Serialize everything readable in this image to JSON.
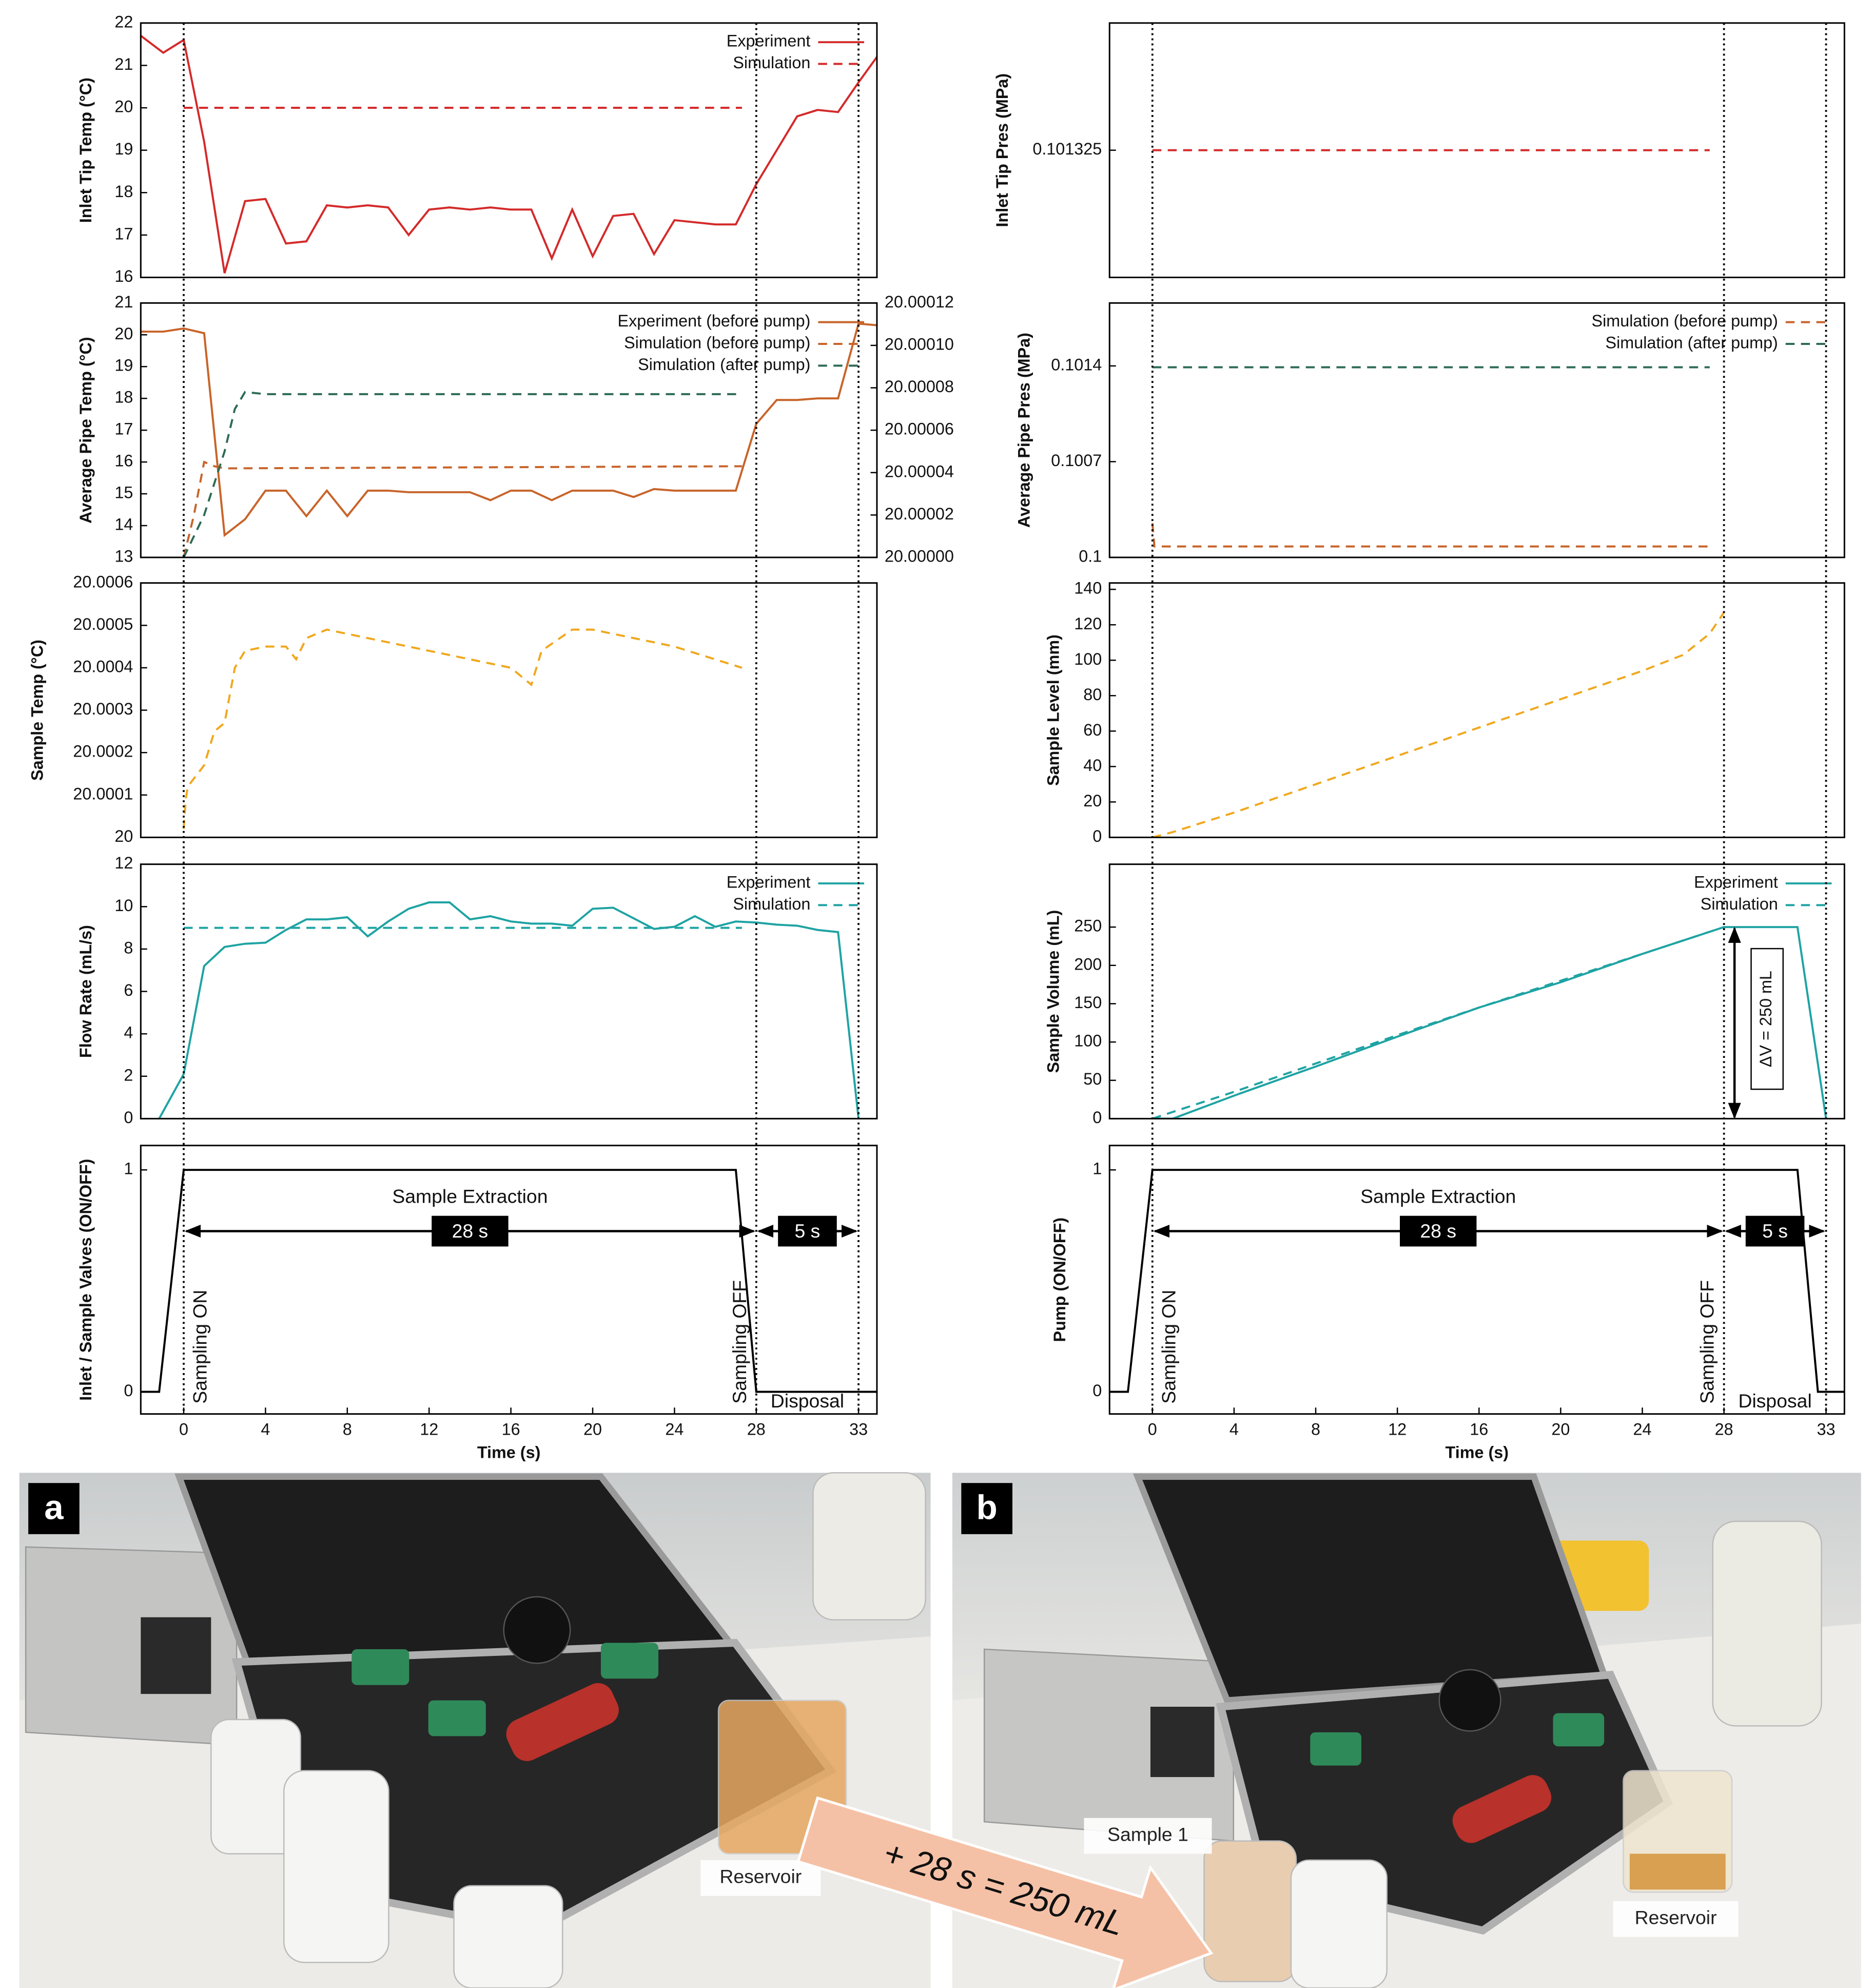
{
  "chart_data": [
    {
      "type": "line",
      "ylabel": "Inlet Tip Temp (°C)",
      "xlim": [
        -2.1,
        33.9
      ],
      "ylim": [
        16,
        22
      ],
      "yticks": [
        16,
        17,
        18,
        19,
        20,
        21,
        22
      ],
      "series": [
        {
          "name": "Experiment",
          "color": "#d42a2a",
          "dashed": false,
          "x": [
            -2.1,
            -1,
            0,
            1,
            2,
            3,
            4,
            5,
            6,
            7,
            8,
            9,
            10,
            11,
            12,
            13,
            14,
            15,
            16,
            17,
            18,
            19,
            20,
            21,
            22,
            23,
            24,
            25,
            26,
            27,
            28,
            29,
            30,
            31,
            32,
            33,
            33.9
          ],
          "values": [
            21.7,
            21.3,
            21.6,
            19.2,
            16.1,
            17.8,
            17.85,
            16.8,
            16.85,
            17.7,
            17.65,
            17.7,
            17.65,
            17.0,
            17.6,
            17.65,
            17.6,
            17.65,
            17.6,
            17.6,
            16.45,
            17.6,
            16.5,
            17.45,
            17.5,
            16.55,
            17.35,
            17.3,
            17.25,
            17.25,
            18.2,
            19.0,
            19.8,
            19.95,
            19.9,
            20.6,
            21.2
          ]
        },
        {
          "name": "Simulation",
          "color": "#d42a2a",
          "dashed": true,
          "x": [
            0,
            27.3
          ],
          "values": [
            20,
            20
          ]
        }
      ]
    },
    {
      "type": "line",
      "ylabel": "Average Pipe Temp (°C)",
      "xlim": [
        -2.1,
        33.9
      ],
      "ylim": [
        13,
        21
      ],
      "yticks": [
        13,
        14,
        15,
        16,
        17,
        18,
        19,
        20,
        21
      ],
      "y2lim": [
        20,
        20.00012
      ],
      "y2ticks": [
        {
          "value": 20,
          "label": "20.00000"
        },
        20.00002,
        20.00004,
        20.00006,
        20.00008,
        {
          "value": 20.0001,
          "label": "20.00010"
        },
        20.00012
      ],
      "series": [
        {
          "name": "Experiment (before pump)",
          "color": "#c8642a",
          "dashed": false,
          "x": [
            -2.1,
            -1,
            0,
            1,
            2,
            3,
            4,
            5,
            6,
            7,
            8,
            9,
            10,
            11,
            12,
            13,
            14,
            15,
            16,
            17,
            18,
            19,
            20,
            21,
            22,
            23,
            24,
            25,
            26,
            27,
            28,
            29,
            30,
            31,
            32,
            33,
            33.9
          ],
          "values": [
            20.1,
            20.1,
            20.2,
            20.05,
            13.7,
            14.2,
            15.1,
            15.1,
            14.3,
            15.1,
            14.3,
            15.1,
            15.1,
            15.05,
            15.05,
            15.05,
            15.05,
            14.8,
            15.1,
            15.1,
            14.8,
            15.1,
            15.1,
            15.1,
            14.9,
            15.15,
            15.1,
            15.1,
            15.1,
            15.1,
            17.2,
            17.95,
            17.95,
            18.0,
            18.0,
            20.35,
            20.3
          ]
        },
        {
          "name": "Simulation (before pump)",
          "color": "#c8642a",
          "dashed": true,
          "axis": "y2",
          "x": [
            0,
            0.5,
            1,
            1.5,
            2,
            27.3
          ],
          "values": [
            20.0,
            20.00002,
            20.000045,
            20.000043,
            20.000042,
            20.000043
          ]
        },
        {
          "name": "Simulation (after pump)",
          "color": "#2e6b55",
          "dashed": true,
          "axis": "y2",
          "x": [
            0,
            1,
            2,
            2.5,
            3,
            4,
            27.3
          ],
          "values": [
            20.0,
            20.00002,
            20.00005,
            20.00007,
            20.000078,
            20.000077,
            20.000077
          ]
        }
      ]
    },
    {
      "type": "line",
      "ylabel": "Sample Temp (°C)",
      "xlim": [
        -2.1,
        33.9
      ],
      "ylim": [
        20,
        20.0006
      ],
      "yticks": [
        20,
        20.0001,
        20.0002,
        20.0003,
        20.0004,
        20.0005,
        20.0006
      ],
      "color": "#f0a81e",
      "dashed": true,
      "x": [
        0,
        0.1,
        0.2,
        1,
        1.5,
        2,
        2.5,
        3,
        4,
        5,
        5.5,
        6,
        7,
        8,
        12,
        16,
        17,
        17.5,
        19,
        20,
        24,
        27.3
      ],
      "values": [
        20.00002,
        20.00009,
        20.00012,
        20.00017,
        20.00025,
        20.00027,
        20.0004,
        20.00044,
        20.00045,
        20.00045,
        20.00042,
        20.00047,
        20.00049,
        20.00048,
        20.00044,
        20.0004,
        20.00036,
        20.00044,
        20.00049,
        20.00049,
        20.00045,
        20.0004
      ]
    },
    {
      "type": "line",
      "ylabel": "Flow Rate (mL/s)",
      "xlim": [
        -2.1,
        33.9
      ],
      "ylim": [
        0,
        12
      ],
      "yticks": [
        0,
        2,
        4,
        6,
        8,
        10,
        12
      ],
      "series": [
        {
          "name": "Experiment",
          "color": "#1fa3a3",
          "dashed": false,
          "x": [
            -1.2,
            0,
            1,
            2,
            3,
            4,
            5,
            6,
            7,
            8,
            9,
            10,
            11,
            12,
            13,
            14,
            15,
            16,
            17,
            18,
            19,
            20,
            21,
            22,
            23,
            24,
            25,
            26,
            27,
            28,
            29,
            30,
            31,
            32,
            33
          ],
          "values": [
            0,
            2.1,
            7.2,
            8.1,
            8.25,
            8.3,
            8.9,
            9.4,
            9.4,
            9.5,
            8.6,
            9.3,
            9.9,
            10.2,
            10.2,
            9.4,
            9.55,
            9.3,
            9.2,
            9.2,
            9.1,
            9.9,
            9.95,
            9.45,
            8.95,
            9.05,
            9.55,
            9.05,
            9.3,
            9.25,
            9.15,
            9.1,
            8.9,
            8.8,
            0
          ]
        },
        {
          "name": "Simulation",
          "color": "#1fa3a3",
          "dashed": true,
          "x": [
            0,
            27.3
          ],
          "values": [
            9,
            9
          ]
        }
      ]
    },
    {
      "type": "line",
      "ylabel": "Inlet / Sample Valves (ON/OFF)",
      "xlabel": "Time (s)",
      "xlim": [
        -2.1,
        33.9
      ],
      "ylim": [
        -0.1,
        1.11
      ],
      "yticks": [
        0,
        1
      ],
      "xticks": [
        0,
        4,
        8,
        12,
        16,
        20,
        24,
        28,
        33
      ],
      "color": "#000000",
      "dashed": false,
      "x": [
        -2.1,
        -1.2,
        0,
        27,
        28,
        33.9
      ],
      "values": [
        0,
        0,
        1,
        1,
        0,
        0
      ],
      "annotations": [
        "Sample Extraction",
        "28 s",
        "5 s",
        "Sampling ON",
        "Sampling OFF",
        "Disposal"
      ]
    },
    {
      "type": "line",
      "ylabel": "Inlet Tip Pres (MPa)",
      "xlim": [
        -2.1,
        33.9
      ],
      "ylim": [
        0.1013,
        0.10135
      ],
      "yticks": [
        0.101325
      ],
      "color": "#d42a2a",
      "dashed": true,
      "x": [
        0,
        27.3
      ],
      "values": [
        0.101325,
        0.101325
      ]
    },
    {
      "type": "line",
      "ylabel": "Average Pipe Pres (MPa)",
      "xlim": [
        -2.1,
        33.9
      ],
      "ylim": [
        0.1,
        0.10186
      ],
      "yticks": [
        0.1,
        0.1007,
        0.1014
      ],
      "series": [
        {
          "name": "Simulation (before pump)",
          "color": "#c8642a",
          "dashed": true,
          "x": [
            0,
            0.1,
            27.3
          ],
          "values": [
            0.10025,
            0.10008,
            0.10008
          ]
        },
        {
          "name": "Simulation (after pump)",
          "color": "#2e6b55",
          "dashed": true,
          "x": [
            0,
            27.3
          ],
          "values": [
            0.10139,
            0.10139
          ]
        }
      ]
    },
    {
      "type": "line",
      "ylabel": "Sample Level (mm)",
      "xlim": [
        -2.1,
        33.9
      ],
      "ylim": [
        0,
        143.6
      ],
      "yticks": [
        0,
        20,
        40,
        60,
        80,
        100,
        120,
        140
      ],
      "color": "#f0a81e",
      "dashed": true,
      "x": [
        0,
        1,
        4,
        8,
        12,
        16,
        20,
        24,
        26,
        27.3,
        28
      ],
      "values": [
        0,
        3,
        14,
        30,
        46,
        62,
        78,
        94,
        103,
        115,
        127
      ]
    },
    {
      "type": "line",
      "ylabel": "Sample Volume (mL)",
      "xlim": [
        -2.1,
        33.9
      ],
      "ylim": [
        0,
        332
      ],
      "yticks": [
        0,
        50,
        100,
        150,
        200,
        250
      ],
      "series": [
        {
          "name": "Experiment",
          "color": "#1fa3a3",
          "dashed": false,
          "x": [
            0,
            1,
            4,
            8,
            12,
            16,
            20,
            24,
            28,
            31.6,
            33
          ],
          "values": [
            0,
            0,
            30,
            68,
            107,
            145,
            178,
            215,
            250,
            250,
            0
          ]
        },
        {
          "name": "Simulation",
          "color": "#1fa3a3",
          "dashed": true,
          "x": [
            0,
            4,
            8,
            12,
            16,
            20,
            24,
            28
          ],
          "values": [
            0,
            35,
            72,
            109,
            145,
            180,
            215,
            250
          ]
        }
      ],
      "annotations": [
        "ΔV = 250 mL"
      ]
    },
    {
      "type": "line",
      "ylabel": "Pump (ON/OFF)",
      "xlabel": "Time (s)",
      "xlim": [
        -2.1,
        33.9
      ],
      "ylim": [
        -0.1,
        1.11
      ],
      "yticks": [
        0,
        1
      ],
      "xticks": [
        0,
        4,
        8,
        12,
        16,
        20,
        24,
        28,
        33
      ],
      "color": "#000000",
      "dashed": false,
      "x": [
        -2.1,
        -1.2,
        0,
        31.6,
        32.6,
        33.9
      ],
      "values": [
        0,
        0,
        1,
        1,
        0,
        0
      ],
      "annotations": [
        "Sample Extraction",
        "28 s",
        "5 s",
        "Sampling ON",
        "Sampling OFF",
        "Disposal"
      ]
    }
  ],
  "photos": [
    {
      "label": "a",
      "captions": [
        "Reservoir"
      ]
    },
    {
      "label": "b",
      "captions": [
        "Sample 1",
        "Reservoir"
      ]
    }
  ],
  "arrow_text": "+ 28 s = 250 mL"
}
